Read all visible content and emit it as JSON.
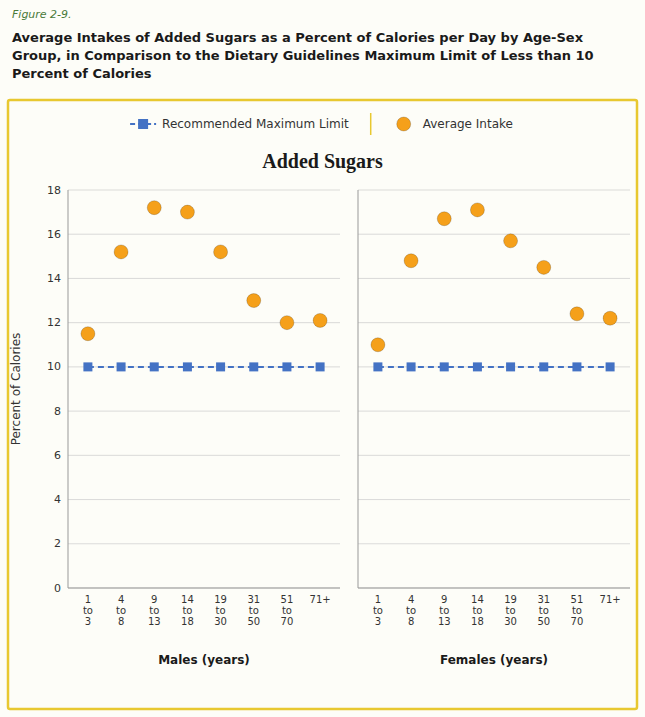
{
  "chart_data": [
    {
      "type": "line",
      "title": "Average Intakes of Added Sugars as a Percent of Calories per Day by Age-Sex Group, in Comparison to the Dietary Guidelines Maximum Limit of Less than 10 Percent of Calories",
      "subtitle": "Added Sugars",
      "annotations": [
        "Figure 2-9."
      ],
      "x_label": "Males (years)",
      "y_label": "Percent of Calories",
      "categories": [
        "1\nto\n3",
        "4\nto\n8",
        "9\nto\n13",
        "14\nto\n18",
        "19\nto\n30",
        "31\nto\n50",
        "51\nto\n70",
        "71+"
      ],
      "series": [
        {
          "name": "Recommended Maximum Limit",
          "type": "line",
          "color": "#4472C4",
          "line_style": "dashed",
          "marker": "square",
          "values": [
            10.0,
            10.0,
            10.0,
            10.0,
            10.0,
            10.0,
            10.0,
            10.0
          ]
        },
        {
          "name": "Average Intake",
          "type": "scatter",
          "color": "#F5A01A",
          "marker": "circle",
          "values": [
            11.5,
            15.2,
            17.2,
            17.0,
            15.2,
            13.0,
            12.0,
            12.1
          ]
        }
      ],
      "ylim": [
        0,
        18
      ],
      "yticks": [
        0,
        2,
        4,
        6,
        8,
        10,
        12,
        14,
        16,
        18
      ],
      "grid": true,
      "legend": "top"
    },
    {
      "type": "line",
      "x_label": "Females (years)",
      "categories": [
        "1\nto\n3",
        "4\nto\n8",
        "9\nto\n13",
        "14\nto\n18",
        "19\nto\n30",
        "31\nto\n50",
        "51\nto\n70",
        "71+"
      ],
      "series": [
        {
          "name": "Recommended Maximum Limit",
          "type": "line",
          "color": "#4472C4",
          "line_style": "dashed",
          "marker": "square",
          "values": [
            10.0,
            10.0,
            10.0,
            10.0,
            10.0,
            10.0,
            10.0,
            10.0
          ]
        },
        {
          "name": "Average Intake",
          "type": "scatter",
          "color": "#F5A01A",
          "marker": "circle",
          "values": [
            11.0,
            14.8,
            16.7,
            17.1,
            15.7,
            14.5,
            12.4,
            12.2
          ]
        }
      ],
      "ylim": [
        0,
        18
      ],
      "yticks": [
        0,
        2,
        4,
        6,
        8,
        10,
        12,
        14,
        16,
        18
      ],
      "grid": true,
      "tick_labels": "x"
    }
  ]
}
